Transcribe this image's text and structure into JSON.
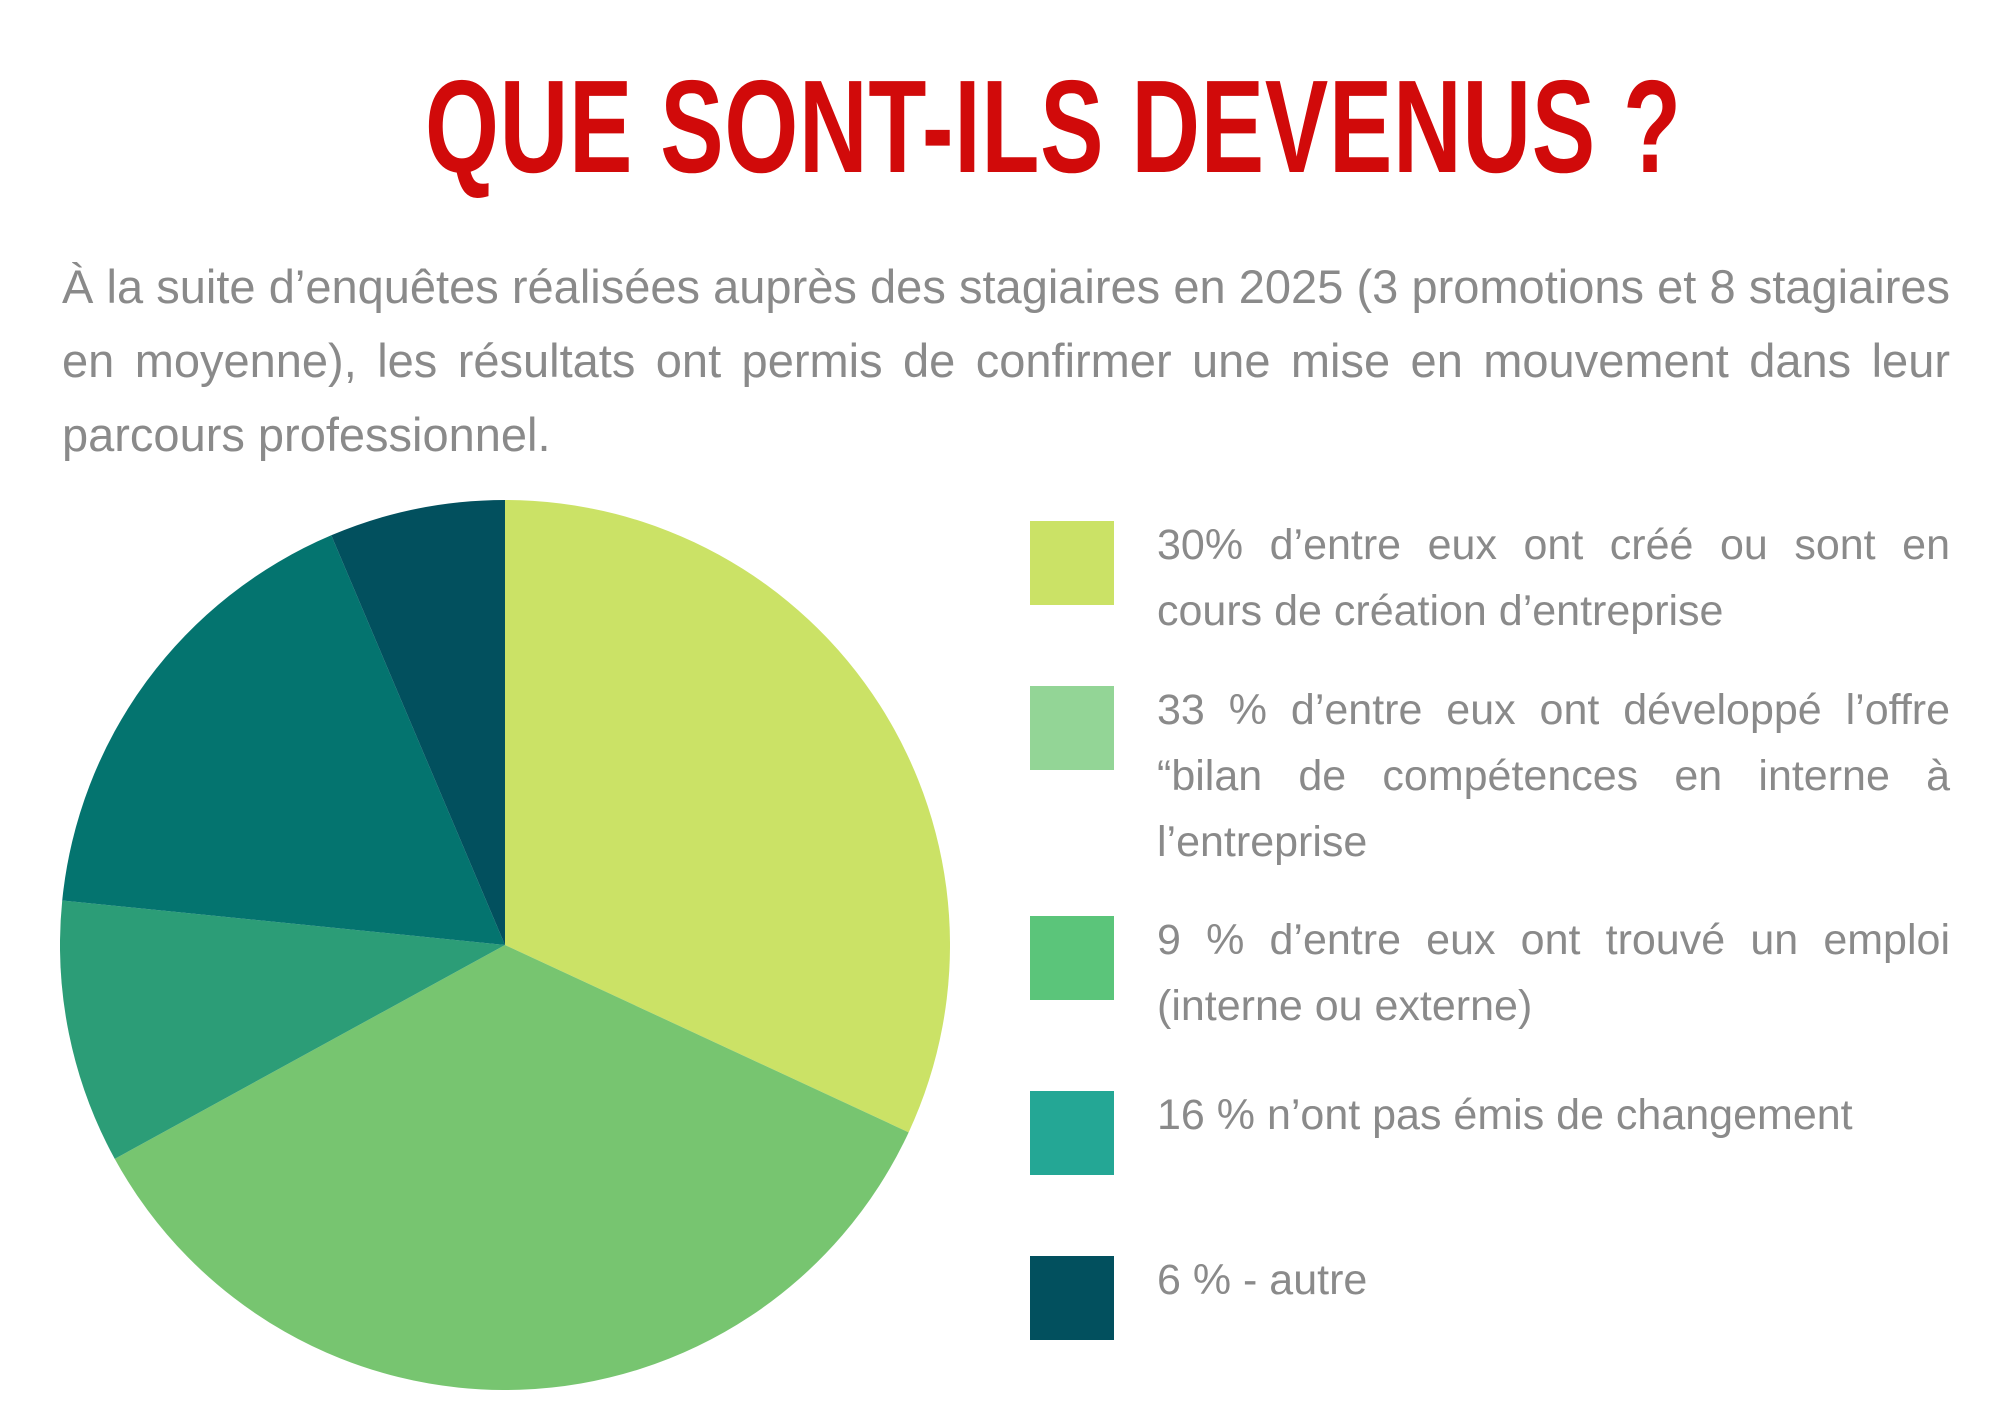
{
  "title": "QUE SONT-ILS DEVENUS ?",
  "intro": "À la suite d’enquêtes réalisées auprès des stagiaires en 2025 (3 promotions et 8 stagiaires en moyenne), les résultats ont permis de confirmer une mise en mouvement dans leur parcours professionnel.",
  "legend": [
    {
      "label": "30% d’entre eux ont créé ou sont en cours de création d’entreprise",
      "color": "#cbe266"
    },
    {
      "label": "33 % d’entre eux ont développé l’offre “bilan de compétences en interne à l’entreprise",
      "color": "#93d596"
    },
    {
      "label": "9 % d’entre eux ont trouvé un emploi (interne ou externe)",
      "color": "#5bc57a"
    },
    {
      "label": "16 % n’ont pas émis de changement",
      "color": "#24a795"
    },
    {
      "label": "6 % - autre",
      "color": "#02505e"
    }
  ],
  "chart_data": {
    "type": "pie",
    "title": "",
    "slices": [
      {
        "label": "30%",
        "value": 30,
        "color": "#cbe266"
      },
      {
        "label": "33 %",
        "value": 33,
        "color": "#77c570"
      },
      {
        "label": "9 %",
        "value": 9,
        "color": "#2c9d77"
      },
      {
        "label": "16 %",
        "value": 16,
        "color": "#04746f"
      },
      {
        "label": "6 %",
        "value": 6,
        "color": "#02505e"
      }
    ],
    "start_angle_deg": 0,
    "direction": "clockwise",
    "legend_position": "right"
  }
}
